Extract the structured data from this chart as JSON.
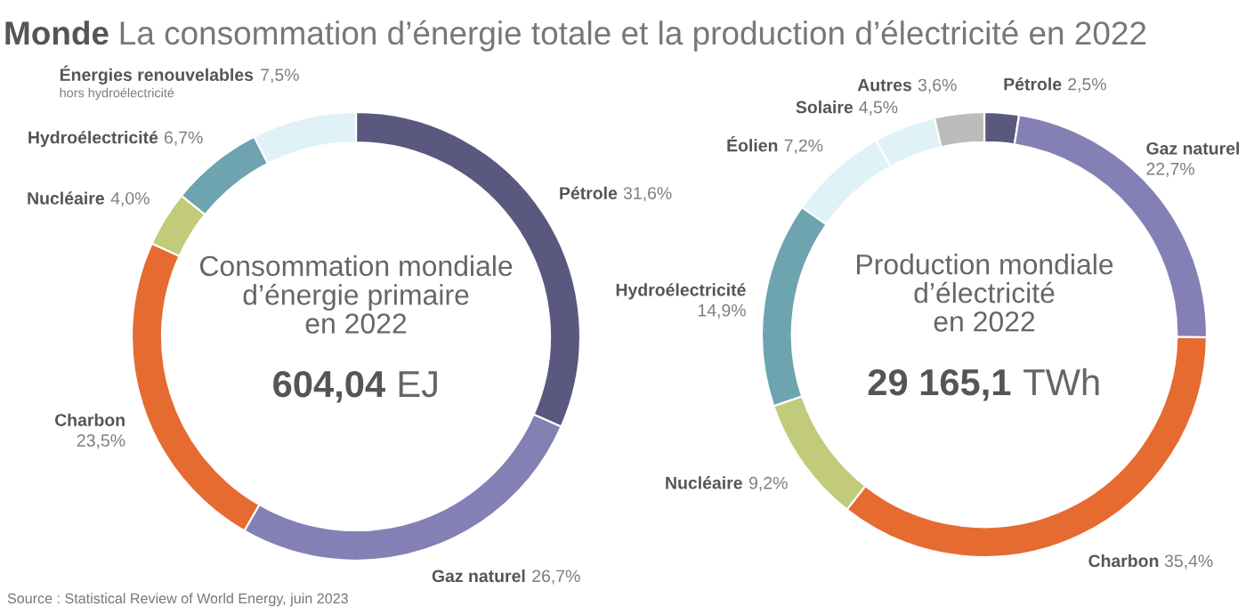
{
  "chart_data": [
    {
      "type": "donut",
      "title": "Monde",
      "subtitle": "La consommation d’énergie totale et la production d’électricité en 2022",
      "categories": [
        "Pétrole",
        "Gaz naturel",
        "Charbon",
        "Nucléaire",
        "Hydroélectricité",
        "Énergies renouvelables\nhors hydroélectricité"
      ],
      "values": [
        31.6,
        26.7,
        23.5,
        4.0,
        6.7,
        7.5
      ],
      "value_labels": [
        "31,6%",
        "26,7%",
        "23,5%",
        "4,0%",
        "6,7%",
        "7,5%"
      ],
      "colors": [
        "#5b587f",
        "#8480b6",
        "#e56b31",
        "#c1cb79",
        "#6ea3b0",
        "#dff2f7"
      ],
      "annotations": [
        "Consommation mondiale\nd’énergie primaire\nen 2022",
        "604,04 EJ"
      ]
    },
    {
      "type": "donut",
      "categories": [
        "Pétrole",
        "Gaz naturel",
        "Charbon",
        "Nucléaire",
        "Hydroélectricité",
        "Éolien",
        "Solaire",
        "Autres"
      ],
      "values": [
        2.5,
        22.7,
        35.4,
        9.2,
        14.9,
        7.2,
        4.5,
        3.6
      ],
      "value_labels": [
        "2,5%",
        "22,7%",
        "35,4%",
        "9,2%",
        "14,9%",
        "7,2%",
        "4,5%",
        "3,6%"
      ],
      "colors": [
        "#5b587f",
        "#8480b6",
        "#e56b31",
        "#c1cb79",
        "#6ea3b0",
        "#dff2f7",
        "#dff2f7",
        "#bcbcbc"
      ],
      "annotations": [
        "Production mondiale\nd’électricité\nen 2022",
        "29 165,1 TWh",
        "Source : Statistical Review of World Energy, juin 2023"
      ]
    }
  ]
}
